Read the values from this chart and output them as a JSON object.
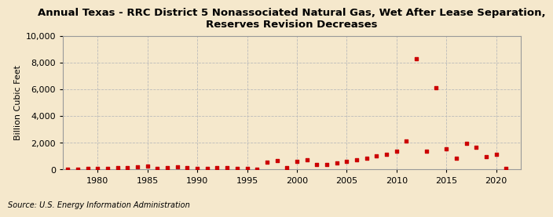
{
  "title_line1": "Annual Texas - RRC District 5 Nonassociated Natural Gas, Wet After Lease Separation,",
  "title_line2": "Reserves Revision Decreases",
  "ylabel": "Billion Cubic Feet",
  "source": "Source: U.S. Energy Information Administration",
  "background_color": "#f5e8cc",
  "marker_color": "#cc0000",
  "years": [
    1977,
    1978,
    1979,
    1980,
    1981,
    1982,
    1983,
    1984,
    1985,
    1986,
    1987,
    1988,
    1989,
    1990,
    1991,
    1992,
    1993,
    1994,
    1995,
    1996,
    1997,
    1998,
    1999,
    2000,
    2001,
    2002,
    2003,
    2004,
    2005,
    2006,
    2007,
    2008,
    2009,
    2010,
    2011,
    2012,
    2013,
    2014,
    2015,
    2016,
    2017,
    2018,
    2019,
    2020,
    2021
  ],
  "values": [
    25,
    50,
    70,
    80,
    100,
    130,
    150,
    210,
    270,
    100,
    160,
    190,
    130,
    80,
    100,
    130,
    140,
    110,
    80,
    50,
    580,
    680,
    130,
    600,
    720,
    380,
    360,
    490,
    600,
    760,
    870,
    1030,
    1170,
    1380,
    2150,
    8300,
    1380,
    6150,
    1550,
    830,
    1950,
    1680,
    960,
    1150,
    60
  ],
  "xlim": [
    1976.5,
    2022.5
  ],
  "ylim": [
    0,
    10000
  ],
  "yticks": [
    0,
    2000,
    4000,
    6000,
    8000,
    10000
  ],
  "xticks": [
    1980,
    1985,
    1990,
    1995,
    2000,
    2005,
    2010,
    2015,
    2020
  ],
  "grid_color": "#bbbbbb",
  "title_fontsize": 9.5,
  "axis_fontsize": 8,
  "source_fontsize": 7
}
